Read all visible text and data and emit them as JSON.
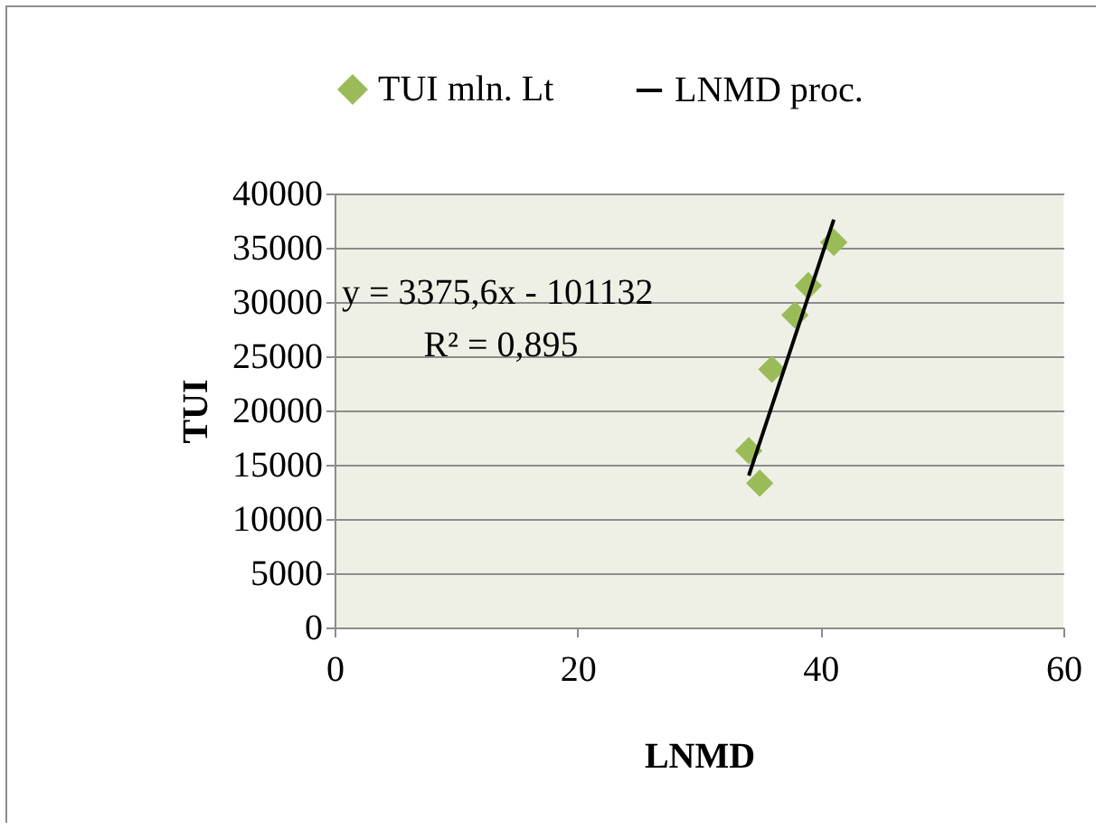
{
  "chart_data": {
    "type": "scatter",
    "xlabel": "LNMD",
    "ylabel": "TUI",
    "annotations": [
      "y = 3375,6x - 101132",
      "R² = 0,895"
    ],
    "series": [
      {
        "name": "TUI mln. Lt",
        "color": "#9bbb59",
        "x": [
          41.1,
          39.0,
          37.9,
          36.0,
          34.1,
          35.0
        ],
        "values": [
          35500,
          31500,
          28800,
          23800,
          16300,
          13300
        ]
      },
      {
        "name": "LNMD proc.",
        "type": "line",
        "marker": "none",
        "color": "#000000",
        "x": [
          34.1,
          41.1
        ],
        "values": [
          14000,
          37600
        ]
      }
    ],
    "xlim": [
      0,
      60
    ],
    "xticks": [
      0,
      20,
      40,
      60
    ],
    "ylim": [
      0,
      40000
    ],
    "yticks": [
      0,
      5000,
      10000,
      15000,
      20000,
      25000,
      30000,
      35000,
      40000
    ],
    "grid": "y",
    "legend": "top",
    "marker": "diamond"
  }
}
